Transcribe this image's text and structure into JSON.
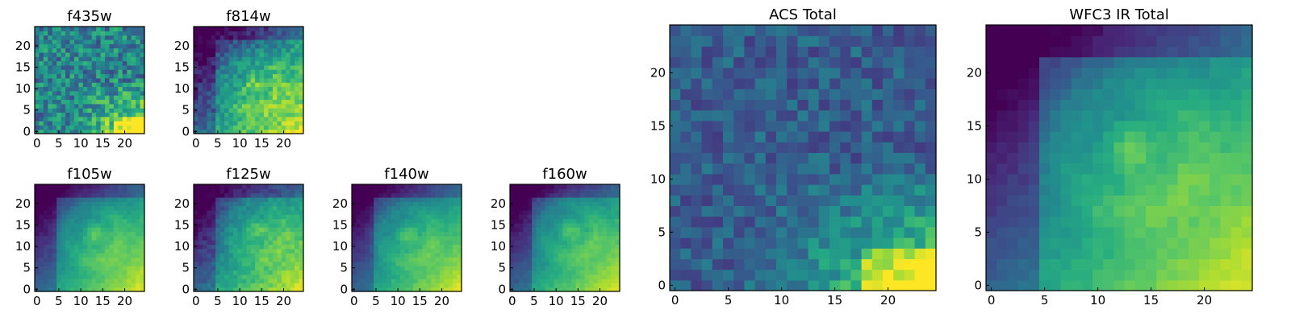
{
  "chart_data": [
    {
      "type": "heatmap",
      "title": "f435w",
      "colormap": "viridis",
      "grid": false,
      "xlim": [
        0,
        24
      ],
      "ylim": [
        0,
        24
      ],
      "xticks": [
        "0",
        "5",
        "10",
        "15",
        "20"
      ],
      "yticks": [
        "0",
        "5",
        "10",
        "15",
        "20"
      ],
      "description_values": {
        "background_level": 0.45,
        "noise": 0.45,
        "bright_region": "bottom-right",
        "peak_value": 1.0
      }
    },
    {
      "type": "heatmap",
      "title": "f814w",
      "colormap": "viridis",
      "grid": false,
      "xlim": [
        0,
        24
      ],
      "ylim": [
        0,
        24
      ],
      "xticks": [
        "0",
        "5",
        "10",
        "15",
        "20"
      ],
      "yticks": [
        "0",
        "5",
        "10",
        "15",
        "20"
      ],
      "description_values": {
        "background_level": 0.3,
        "noise": 0.3,
        "bright_region": "bottom-right",
        "ring_center": [
          13,
          11
        ],
        "peak_value": 1.0
      }
    },
    {
      "type": "heatmap",
      "title": "f105w",
      "colormap": "viridis",
      "grid": false,
      "xlim": [
        0,
        24
      ],
      "ylim": [
        0,
        24
      ],
      "xticks": [
        "0",
        "5",
        "10",
        "15",
        "20"
      ],
      "yticks": [
        "0",
        "5",
        "10",
        "15",
        "20"
      ],
      "description_values": {
        "ring_center": [
          13,
          13
        ],
        "bright_region": "bottom-right",
        "dark_region": "top-left",
        "peak_value": 1.0
      }
    },
    {
      "type": "heatmap",
      "title": "f125w",
      "colormap": "viridis",
      "grid": false,
      "xlim": [
        0,
        24
      ],
      "ylim": [
        0,
        24
      ],
      "xticks": [
        "0",
        "5",
        "10",
        "15",
        "20"
      ],
      "yticks": [
        "0",
        "5",
        "10",
        "15",
        "20"
      ],
      "description_values": {
        "ring_center": [
          14,
          14
        ],
        "bright_region": "bottom-right",
        "dark_region": "top-left",
        "peak_value": 1.0
      }
    },
    {
      "type": "heatmap",
      "title": "f140w",
      "colormap": "viridis",
      "grid": false,
      "xlim": [
        0,
        24
      ],
      "ylim": [
        0,
        24
      ],
      "xticks": [
        "0",
        "5",
        "10",
        "15",
        "20"
      ],
      "yticks": [
        "0",
        "5",
        "10",
        "15",
        "20"
      ],
      "description_values": {
        "ring_center": [
          12,
          13
        ],
        "bright_region": "bottom-right",
        "dark_region": "top-left",
        "peak_value": 1.0
      }
    },
    {
      "type": "heatmap",
      "title": "f160w",
      "colormap": "viridis",
      "grid": false,
      "xlim": [
        0,
        24
      ],
      "ylim": [
        0,
        24
      ],
      "xticks": [
        "0",
        "5",
        "10",
        "15",
        "20"
      ],
      "yticks": [
        "0",
        "5",
        "10",
        "15",
        "20"
      ],
      "description_values": {
        "ring_center": [
          13,
          14
        ],
        "bright_region": "bottom-right",
        "dark_region": "top-left",
        "peak_value": 1.0
      }
    },
    {
      "type": "heatmap",
      "title": "ACS Total",
      "colormap": "viridis",
      "grid": false,
      "xlim": [
        0,
        24
      ],
      "ylim": [
        0,
        24
      ],
      "xticks": [
        "0",
        "5",
        "10",
        "15",
        "20"
      ],
      "yticks": [
        "0",
        "5",
        "10",
        "15",
        "20"
      ],
      "description_values": {
        "background_level": 0.3,
        "noise": 0.25,
        "bright_region": "bottom-right",
        "peak_value": 1.0
      }
    },
    {
      "type": "heatmap",
      "title": "WFC3 IR Total",
      "colormap": "viridis",
      "grid": false,
      "xlim": [
        0,
        24
      ],
      "ylim": [
        0,
        24
      ],
      "xticks": [
        "0",
        "5",
        "10",
        "15",
        "20"
      ],
      "yticks": [
        "0",
        "5",
        "10",
        "15",
        "20"
      ],
      "description_values": {
        "ring_center": [
          13,
          13
        ],
        "bright_region": "bottom-right",
        "dark_region": "top-left",
        "peak_value": 1.0
      }
    }
  ],
  "colormap_stops": [
    "#440154",
    "#472c7a",
    "#3b518b",
    "#2c718e",
    "#21908d",
    "#27ad81",
    "#5cc863",
    "#aadc32",
    "#fde725"
  ]
}
